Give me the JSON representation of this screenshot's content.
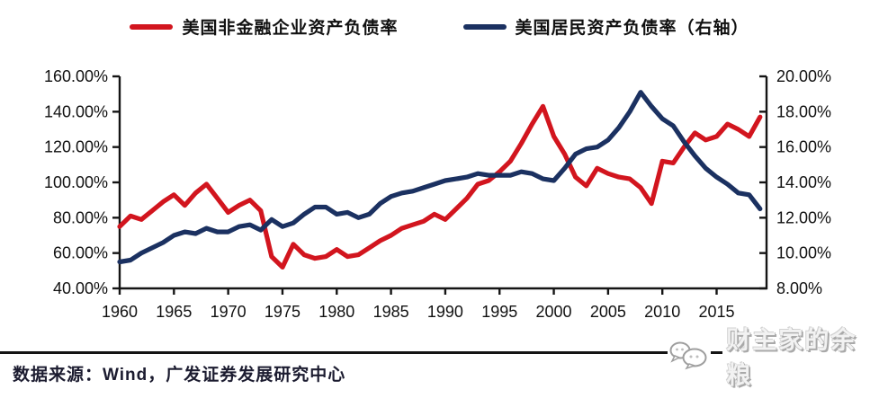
{
  "legend": {
    "items": [
      {
        "label": "美国非金融企业资产负债率",
        "color": "#d2151e"
      },
      {
        "label": "美国居民资产负债率（右轴）",
        "color": "#1b3161"
      }
    ]
  },
  "chart_data": {
    "type": "line",
    "title": "",
    "x_domain": [
      1960,
      2019.6
    ],
    "grid": false,
    "legend_position": "top",
    "left_axis": {
      "min": 40,
      "max": 160,
      "ticks": [
        "160.00%",
        "140.00%",
        "120.00%",
        "100.00%",
        "80.00%",
        "60.00%",
        "40.00%"
      ]
    },
    "right_axis": {
      "min": 8,
      "max": 20,
      "ticks": [
        "20.00%",
        "18.00%",
        "16.00%",
        "14.00%",
        "12.00%",
        "10.00%",
        "8.00%"
      ]
    },
    "x_label_ticks": [
      "1960",
      "1965",
      "1970",
      "1975",
      "1980",
      "1985",
      "1990",
      "1995",
      "2000",
      "2005",
      "2010",
      "2015"
    ],
    "years": [
      1960,
      1961,
      1962,
      1963,
      1964,
      1965,
      1966,
      1967,
      1968,
      1969,
      1970,
      1971,
      1972,
      1973,
      1974,
      1975,
      1976,
      1977,
      1978,
      1979,
      1980,
      1981,
      1982,
      1983,
      1984,
      1985,
      1986,
      1987,
      1988,
      1989,
      1990,
      1991,
      1992,
      1993,
      1994,
      1995,
      1996,
      1997,
      1998,
      1999,
      2000,
      2001,
      2002,
      2003,
      2004,
      2005,
      2006,
      2007,
      2008,
      2009,
      2010,
      2011,
      2012,
      2013,
      2014,
      2015,
      2016,
      2017,
      2018,
      2019
    ],
    "series": [
      {
        "name": "美国非金融企业资产负债率",
        "axis": "left",
        "color": "#d2151e",
        "values": [
          75,
          81,
          79,
          84,
          89,
          93,
          87,
          94,
          99,
          91,
          83,
          87,
          90,
          84,
          58,
          52,
          65,
          59,
          57,
          58,
          62,
          58,
          59,
          63,
          67,
          70,
          74,
          76,
          78,
          82,
          79,
          85,
          91,
          99,
          101,
          106,
          112,
          122,
          133,
          143,
          126,
          116,
          103,
          98,
          108,
          105,
          103,
          102,
          97,
          88,
          112,
          111,
          120,
          128,
          124,
          126,
          133,
          130,
          126,
          137
        ]
      },
      {
        "name": "美国居民资产负债率（右轴）",
        "axis": "right",
        "color": "#1b3161",
        "values": [
          9.5,
          9.6,
          10.0,
          10.3,
          10.6,
          11.0,
          11.2,
          11.1,
          11.4,
          11.2,
          11.2,
          11.5,
          11.6,
          11.3,
          11.9,
          11.5,
          11.7,
          12.2,
          12.6,
          12.6,
          12.2,
          12.3,
          12.0,
          12.2,
          12.8,
          13.2,
          13.4,
          13.5,
          13.7,
          13.9,
          14.1,
          14.2,
          14.3,
          14.5,
          14.4,
          14.4,
          14.4,
          14.6,
          14.5,
          14.2,
          14.1,
          14.8,
          15.6,
          15.9,
          16.0,
          16.4,
          17.1,
          18.0,
          19.1,
          18.3,
          17.6,
          17.2,
          16.3,
          15.5,
          14.8,
          14.3,
          13.9,
          13.4,
          13.3,
          12.5
        ]
      }
    ]
  },
  "footer": {
    "source_text": "数据来源：Wind，广发证券发展研究中心",
    "watermark": "财主家的余粮"
  }
}
